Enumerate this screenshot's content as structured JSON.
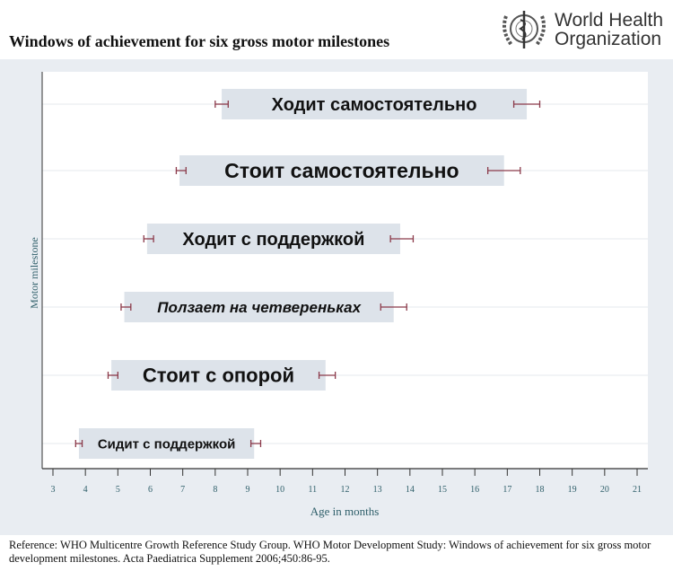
{
  "title": "Windows of achievement for six gross motor milestones",
  "logo": {
    "line1": "World Health",
    "line2": "Organization"
  },
  "reference": "Reference: WHO Multicentre Growth Reference Study Group. WHO Motor Development Study: Windows of achievement for six gross motor development milestones. Acta Paediatrica Supplement 2006;450:86-95.",
  "colors": {
    "box": "#dde3ea",
    "errorbar": "#8b3a4a",
    "axis": "#333333"
  },
  "chart_data": {
    "type": "bar",
    "orientation": "horizontal-range",
    "xlabel": "Age in months",
    "ylabel": "Motor milestone",
    "xlim": [
      3,
      21
    ],
    "xticks": [
      "3",
      "4",
      "5",
      "6",
      "7",
      "8",
      "9",
      "10",
      "11",
      "12",
      "13",
      "14",
      "15",
      "16",
      "17",
      "18",
      "19",
      "20",
      "21"
    ],
    "grid": true,
    "series": [
      {
        "name": "Ходит самостоятельно",
        "start": 8.2,
        "end": 17.6,
        "ci_start": [
          8.0,
          8.4
        ],
        "ci_end": [
          17.2,
          18.0
        ],
        "font": 20,
        "italic": false
      },
      {
        "name": "Стоит самостоятельно",
        "start": 6.9,
        "end": 16.9,
        "ci_start": [
          6.8,
          7.1
        ],
        "ci_end": [
          16.4,
          17.4
        ],
        "font": 23,
        "italic": false
      },
      {
        "name": "Ходит с поддержкой",
        "start": 5.9,
        "end": 13.7,
        "ci_start": [
          5.8,
          6.1
        ],
        "ci_end": [
          13.4,
          14.1
        ],
        "font": 20,
        "italic": false
      },
      {
        "name": "Ползает на четвереньках",
        "start": 5.2,
        "end": 13.5,
        "ci_start": [
          5.1,
          5.4
        ],
        "ci_end": [
          13.1,
          13.9
        ],
        "font": 17,
        "italic": true
      },
      {
        "name": "Стоит с опорой",
        "start": 4.8,
        "end": 11.4,
        "ci_start": [
          4.7,
          5.0
        ],
        "ci_end": [
          11.2,
          11.7
        ],
        "font": 22,
        "italic": false
      },
      {
        "name": "Сидит с поддержкой",
        "start": 3.8,
        "end": 9.2,
        "ci_start": [
          3.7,
          3.9
        ],
        "ci_end": [
          9.1,
          9.4
        ],
        "font": 15,
        "italic": false
      }
    ]
  }
}
